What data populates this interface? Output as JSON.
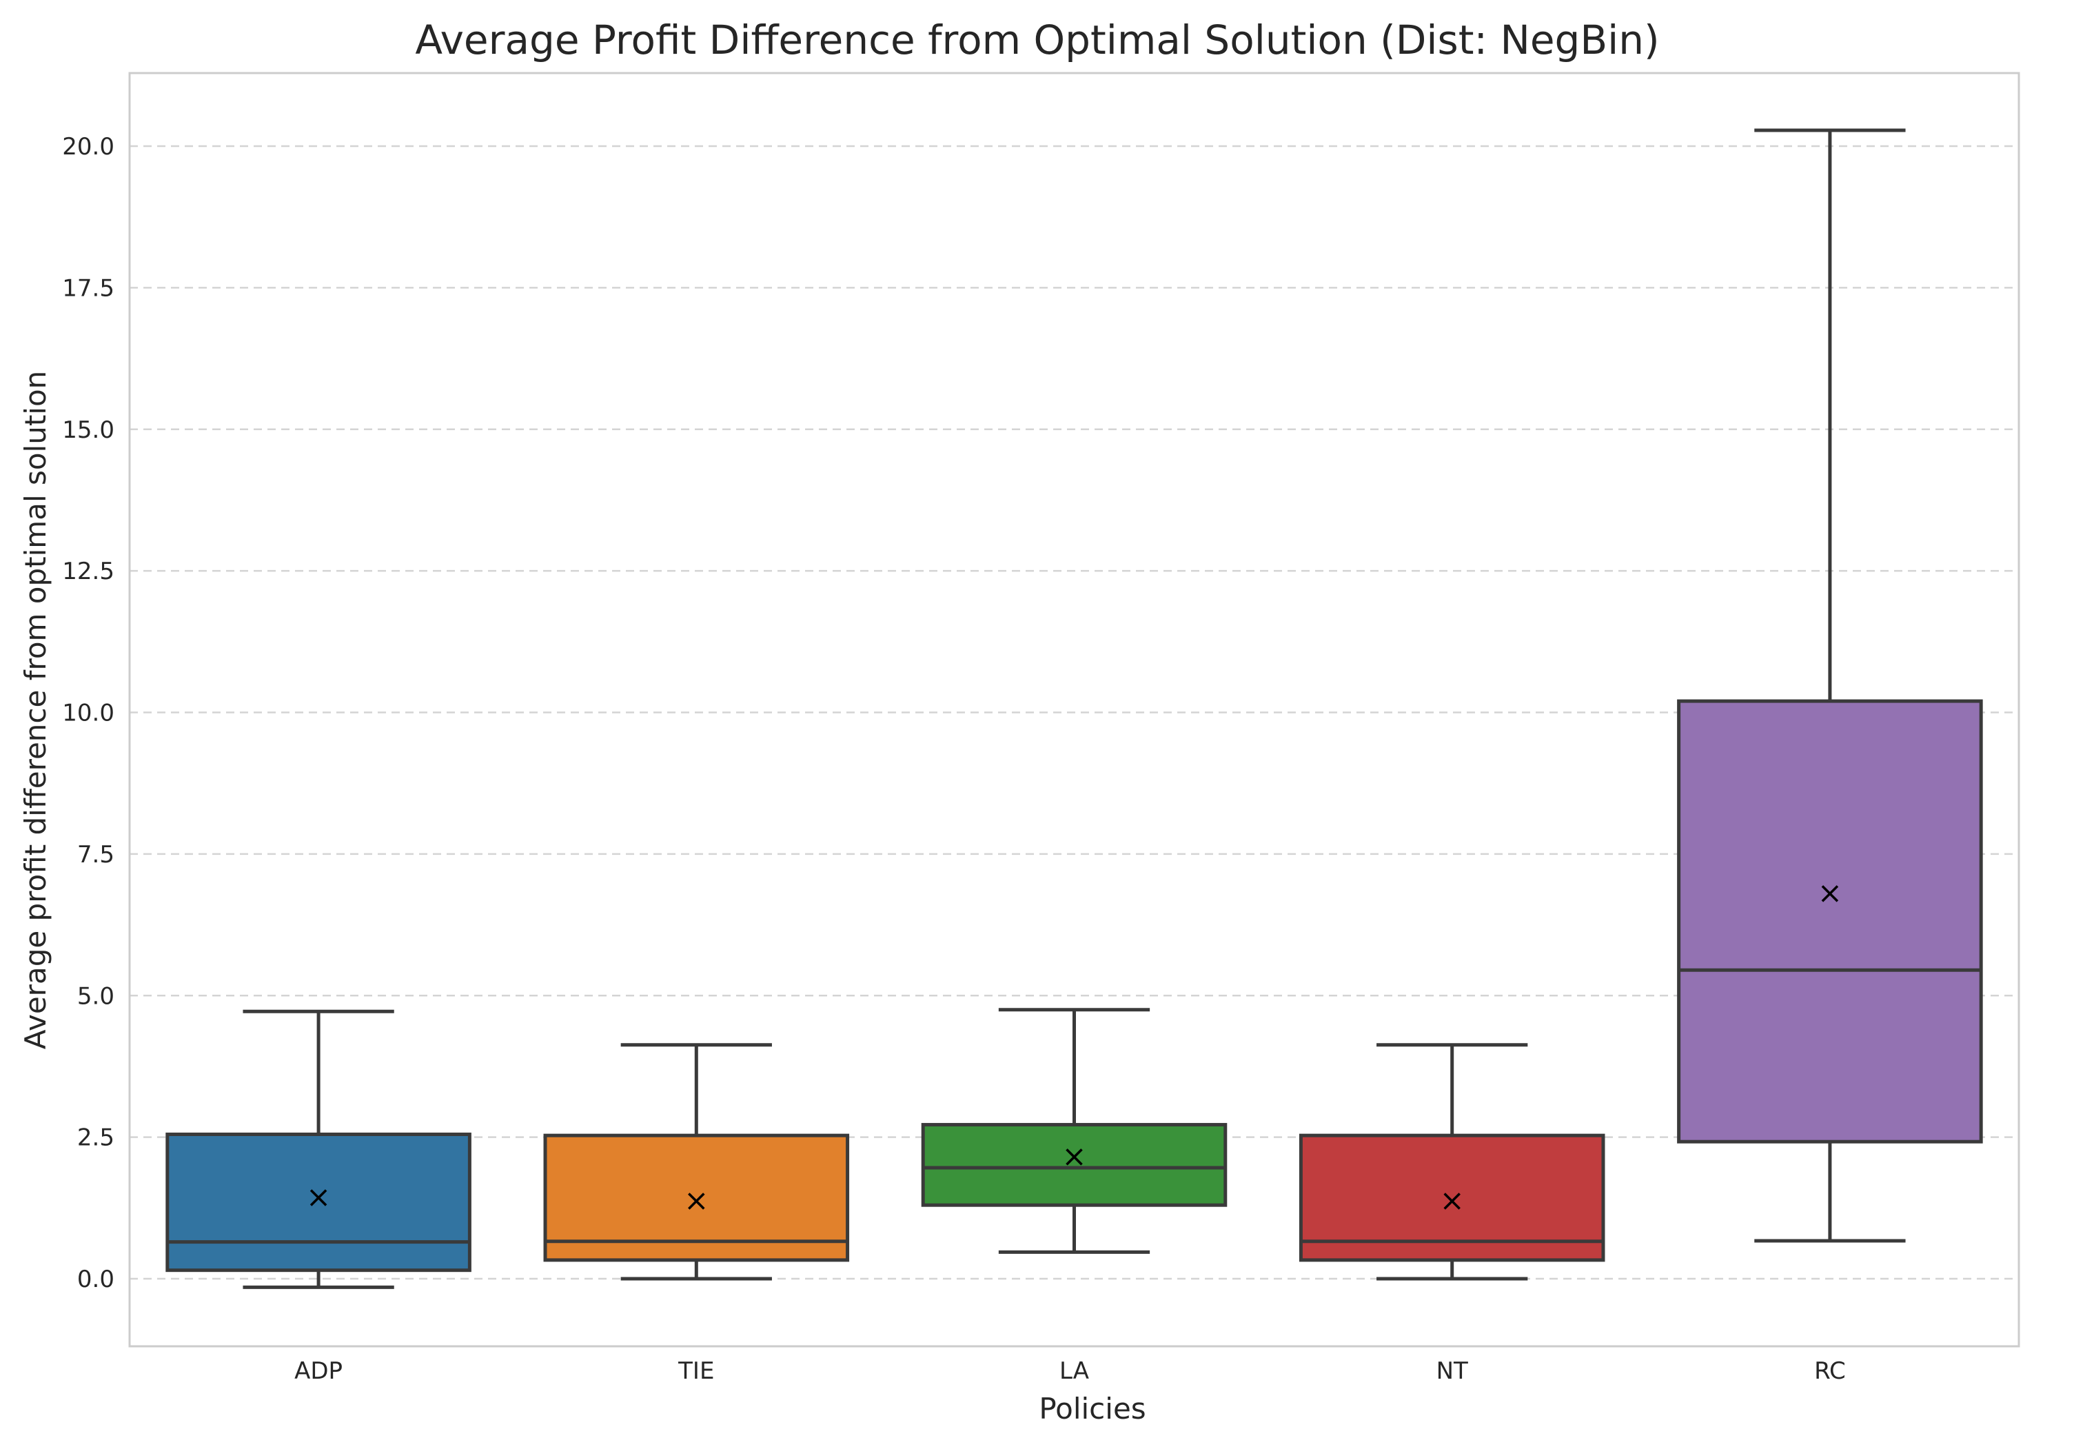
{
  "chart_data": {
    "type": "box",
    "title": "Average Profit Difference from Optimal Solution (Dist: NegBin)",
    "xlabel": "Policies",
    "ylabel": "Average profit difference from optimal solution",
    "ylim": [
      -1.2,
      21.3
    ],
    "yticks": [
      "0.0",
      "2.5",
      "5.0",
      "7.5",
      "10.0",
      "12.5",
      "15.0",
      "17.5",
      "20.0"
    ],
    "grid": "horizontal dashed",
    "categories": [
      "ADP",
      "TIE",
      "LA",
      "NT",
      "RC"
    ],
    "boxes": [
      {
        "label": "ADP",
        "whisker_low": -0.15,
        "q1": 0.15,
        "median": 0.65,
        "q3": 2.55,
        "whisker_high": 4.72,
        "mean": 1.43,
        "color": "#3274a1"
      },
      {
        "label": "TIE",
        "whisker_low": 0.0,
        "q1": 0.33,
        "median": 0.66,
        "q3": 2.53,
        "whisker_high": 4.13,
        "mean": 1.37,
        "color": "#e1812c"
      },
      {
        "label": "LA",
        "whisker_low": 0.47,
        "q1": 1.3,
        "median": 1.96,
        "q3": 2.72,
        "whisker_high": 4.75,
        "mean": 2.15,
        "color": "#3a923a"
      },
      {
        "label": "NT",
        "whisker_low": 0.0,
        "q1": 0.33,
        "median": 0.66,
        "q3": 2.53,
        "whisker_high": 4.13,
        "mean": 1.37,
        "color": "#c03d3e"
      },
      {
        "label": "RC",
        "whisker_low": 0.67,
        "q1": 2.42,
        "median": 5.45,
        "q3": 10.2,
        "whisker_high": 20.28,
        "mean": 6.8,
        "color": "#9372b2"
      }
    ]
  }
}
